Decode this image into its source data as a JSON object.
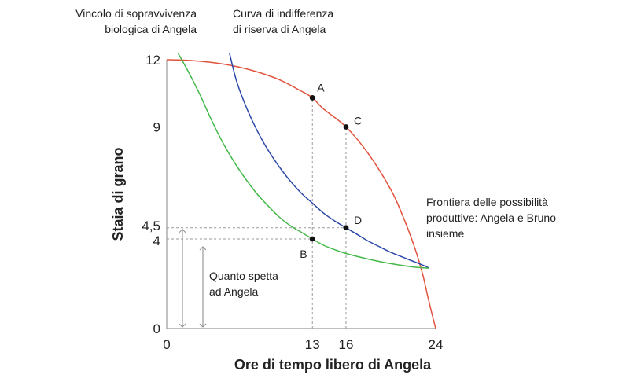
{
  "chart_data": {
    "type": "line",
    "xlabel": "Ore di tempo libero di Angela",
    "ylabel": "Staia di grano",
    "xlim": [
      0,
      24
    ],
    "ylim": [
      0,
      12
    ],
    "x_ticks": [
      {
        "value": 0,
        "label": "0"
      },
      {
        "value": 13,
        "label": "13"
      },
      {
        "value": 16,
        "label": "16"
      },
      {
        "value": 24,
        "label": "24"
      }
    ],
    "y_ticks": [
      {
        "value": 0,
        "label": "0"
      },
      {
        "value": 4,
        "label": "4"
      },
      {
        "value": 4.5,
        "label": "4,5"
      },
      {
        "value": 9,
        "label": "9"
      },
      {
        "value": 12,
        "label": "12"
      }
    ],
    "series": [
      {
        "key": "frontier",
        "label_lines": [
          "Frontiera delle possibilità",
          "produttive: Angela e Bruno",
          "insieme"
        ],
        "color": "#e0533d",
        "points": [
          [
            0,
            12
          ],
          [
            2,
            11.97
          ],
          [
            4,
            11.88
          ],
          [
            6,
            11.72
          ],
          [
            8,
            11.47
          ],
          [
            10,
            11.12
          ],
          [
            12,
            10.6
          ],
          [
            13,
            10.3
          ],
          [
            14,
            9.8
          ],
          [
            16,
            9.0
          ],
          [
            18,
            7.8
          ],
          [
            20,
            6.2
          ],
          [
            21,
            5.1
          ],
          [
            22,
            3.8
          ],
          [
            22.8,
            2.5
          ],
          [
            23.4,
            1.2
          ],
          [
            24,
            0
          ]
        ]
      },
      {
        "key": "indifference",
        "label_lines": [
          "Curva di indifferenza",
          "di riserva di Angela"
        ],
        "color": "#2b48a8",
        "points": [
          [
            5.6,
            12.3
          ],
          [
            6.2,
            11.1
          ],
          [
            7,
            10.0
          ],
          [
            8,
            8.9
          ],
          [
            9,
            8.0
          ],
          [
            10,
            7.25
          ],
          [
            11,
            6.6
          ],
          [
            12,
            6.05
          ],
          [
            13,
            5.6
          ],
          [
            14,
            5.15
          ],
          [
            15,
            4.8
          ],
          [
            16,
            4.5
          ],
          [
            17,
            4.2
          ],
          [
            18,
            3.9
          ],
          [
            19,
            3.65
          ],
          [
            20,
            3.4
          ],
          [
            21,
            3.2
          ],
          [
            22,
            3.0
          ],
          [
            23,
            2.8
          ],
          [
            23.4,
            2.7
          ]
        ]
      },
      {
        "key": "survival",
        "label_lines": [
          "Vincolo di sopravvivenza",
          "biologica di Angela"
        ],
        "color": "#45b84a",
        "points": [
          [
            1,
            12.3
          ],
          [
            2,
            11.4
          ],
          [
            3,
            10.4
          ],
          [
            4,
            9.3
          ],
          [
            5,
            8.3
          ],
          [
            6,
            7.45
          ],
          [
            7,
            6.7
          ],
          [
            8,
            6.05
          ],
          [
            9,
            5.5
          ],
          [
            10,
            5.0
          ],
          [
            11,
            4.6
          ],
          [
            12,
            4.3
          ],
          [
            13,
            4.0
          ],
          [
            14,
            3.72
          ],
          [
            15,
            3.52
          ],
          [
            16,
            3.35
          ],
          [
            18,
            3.1
          ],
          [
            20,
            2.9
          ],
          [
            22,
            2.75
          ],
          [
            23.4,
            2.7
          ]
        ]
      }
    ],
    "points": [
      {
        "label": "A",
        "x": 13,
        "y": 10.3
      },
      {
        "label": "B",
        "x": 13,
        "y": 4
      },
      {
        "label": "C",
        "x": 16,
        "y": 9
      },
      {
        "label": "D",
        "x": 16,
        "y": 4.5
      }
    ],
    "annotation": {
      "lines": [
        "Quanto spetta",
        "ad Angela"
      ],
      "range": [
        0,
        4.5
      ]
    }
  }
}
